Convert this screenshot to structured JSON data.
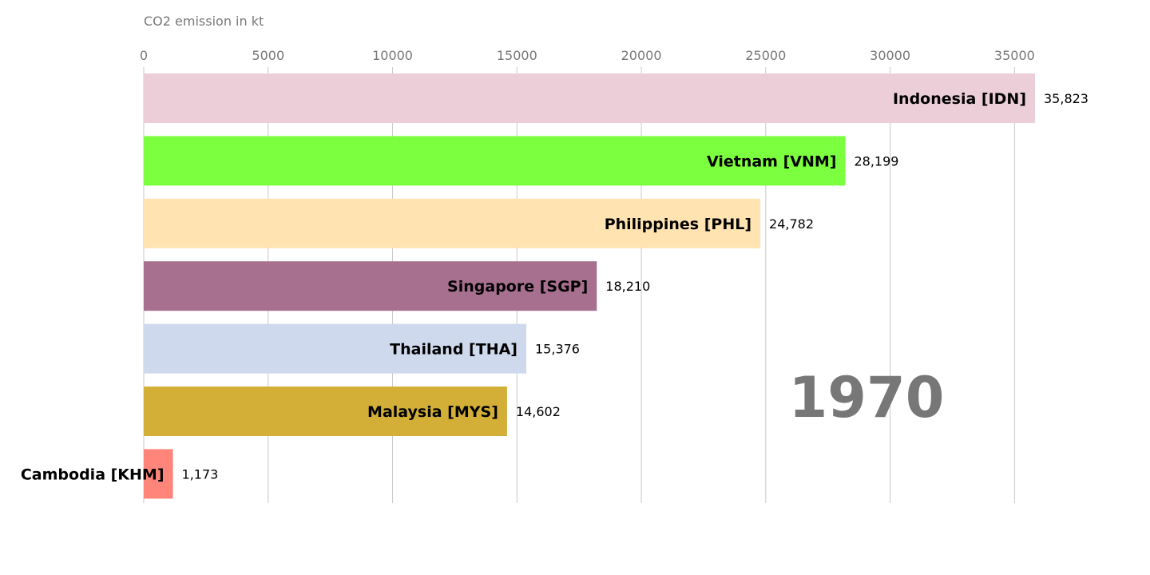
{
  "chart_data": {
    "type": "bar",
    "orientation": "horizontal",
    "xlabel": "CO2 emission in kt",
    "xlim": [
      0,
      35823
    ],
    "xticks": [
      0,
      5000,
      10000,
      15000,
      20000,
      25000,
      30000,
      35000
    ],
    "year": "1970",
    "grid": true,
    "bars": [
      {
        "label": "Indonesia [IDN]",
        "value": 35823,
        "value_text": "35,823",
        "color": "#ecced8"
      },
      {
        "label": "Vietnam [VNM]",
        "value": 28199,
        "value_text": "28,199",
        "color": "#7cff3e"
      },
      {
        "label": "Philippines [PHL]",
        "value": 24782,
        "value_text": "24,782",
        "color": "#ffe3b0"
      },
      {
        "label": "Singapore [SGP]",
        "value": 18210,
        "value_text": "18,210",
        "color": "#a8708f"
      },
      {
        "label": "Thailand [THA]",
        "value": 15376,
        "value_text": "15,376",
        "color": "#cfd9ed"
      },
      {
        "label": "Malaysia [MYS]",
        "value": 14602,
        "value_text": "14,602",
        "color": "#d3af37"
      },
      {
        "label": "Cambodia [KHM]",
        "value": 1173,
        "value_text": "1,173",
        "color": "#ff857a"
      }
    ]
  }
}
